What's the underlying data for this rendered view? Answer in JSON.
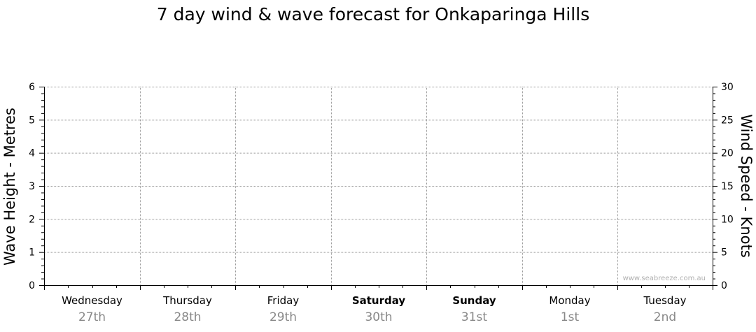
{
  "chart_data": {
    "type": "line",
    "title": "7 day wind & wave forecast for Onkaparinga Hills",
    "ylabel": "Wave Height - Metres",
    "y2label": "Wind Speed - Knots",
    "ylim": [
      0,
      6
    ],
    "y2lim": [
      0,
      30
    ],
    "yticks": [
      "0",
      "1",
      "2",
      "3",
      "4",
      "5",
      "6"
    ],
    "y2ticks": [
      "0",
      "5",
      "10",
      "15",
      "20",
      "25",
      "30"
    ],
    "grid": true,
    "days": [
      {
        "day": "Wednesday",
        "date": "27th",
        "bold": false
      },
      {
        "day": "Thursday",
        "date": "28th",
        "bold": false
      },
      {
        "day": "Friday",
        "date": "29th",
        "bold": false
      },
      {
        "day": "Saturday",
        "date": "30th",
        "bold": true
      },
      {
        "day": "Sunday",
        "date": "31st",
        "bold": true
      },
      {
        "day": "Monday",
        "date": "1st",
        "bold": false
      },
      {
        "day": "Tuesday",
        "date": "2nd",
        "bold": false
      }
    ],
    "series": [],
    "watermark": "www.seabreeze.com.au"
  },
  "colors": {
    "gridline": "#999999",
    "axis": "#000000",
    "date_text": "#888888",
    "watermark": "#b0b0b0"
  }
}
